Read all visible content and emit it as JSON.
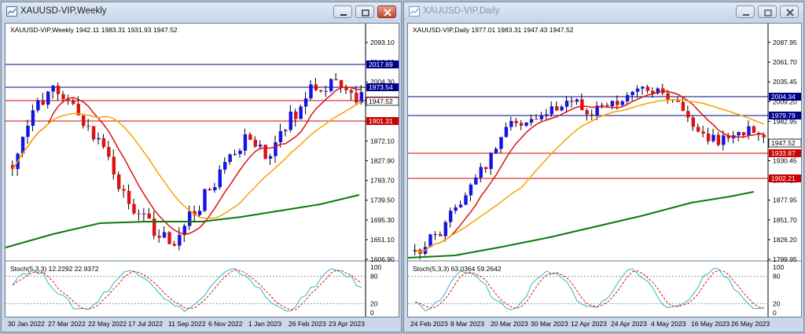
{
  "weekly": {
    "window_title": "XAUUSD-VIP,Weekly",
    "info_line": "XAUUSD-VIP,Weekly  1942.11 1983.31 1931.93 1947.52",
    "price_scale": [
      "2093.10",
      "2048.90",
      "2004.30",
      "1960.50",
      "1916.30",
      "1872.10",
      "1827.90",
      "1783.70",
      "1739.50",
      "1695.30",
      "1651.10",
      "1606.90"
    ],
    "levels": [
      {
        "label": "2017.69",
        "color": "#00008b",
        "kind": "blue"
      },
      {
        "label": "1973.54",
        "color": "#00008b",
        "kind": "blue"
      },
      {
        "label": "1944.00",
        "color": "#cc0000",
        "kind": "red"
      },
      {
        "label": "1901.31",
        "color": "#cc0000",
        "kind": "red"
      }
    ],
    "current_price": "1947.52",
    "stoch_label": "Stoch(5,3,3) 12.2292 22.9372",
    "stoch_scale": [
      "100",
      "80",
      "20",
      "0"
    ],
    "dates": [
      "30 Jan 2022",
      "27 Mar 2022",
      "22 May 2022",
      "17 Jul 2022",
      "11 Sep 2022",
      "6 Nov 2022",
      "1 Jan 2023",
      "26 Feb 2023",
      "23 Apr 2023"
    ]
  },
  "daily": {
    "window_title": "XAUUSD-VIP,Daily",
    "info_line": "XAUUSD-VIP,Daily  1977.01 1983.31 1947.43 1947.52",
    "price_scale": [
      "2087.95",
      "2061.70",
      "2035.45",
      "2009.20",
      "1982.95",
      "1956.70",
      "1930.45",
      "1904.20",
      "1877.95",
      "1851.70",
      "1826.20",
      "1799.95"
    ],
    "levels": [
      {
        "label": "2004.34",
        "color": "#00008b",
        "kind": "blue"
      },
      {
        "label": "1979.79",
        "color": "#00008b",
        "kind": "blue"
      },
      {
        "label": "1933.87",
        "color": "#cc0000",
        "kind": "red"
      },
      {
        "label": "1902.21",
        "color": "#cc0000",
        "kind": "red"
      }
    ],
    "current_price": "1947.52",
    "stoch_label": "Stoch(5,3,3) 63.0364 59.2642",
    "stoch_scale": [
      "100",
      "80",
      "20",
      "0"
    ],
    "dates": [
      "24 Feb 2023",
      "8 Mar 2023",
      "20 Mar 2023",
      "30 Mar 2023",
      "12 Apr 2023",
      "24 Apr 2023",
      "4 May 2023",
      "16 May 2023",
      "26 May 2023"
    ]
  },
  "colors": {
    "bull": "#1414e6",
    "bear": "#e01010",
    "ma_fast": "#e01010",
    "ma_mid": "#f5a500",
    "ma_slow": "#0a7a0a",
    "stoch_main": "#2ab7c9",
    "stoch_signal": "#e01010"
  },
  "icons": {
    "app": "chart-window-icon",
    "minimize": "minimize-icon",
    "restore": "restore-icon",
    "close": "close-icon"
  }
}
